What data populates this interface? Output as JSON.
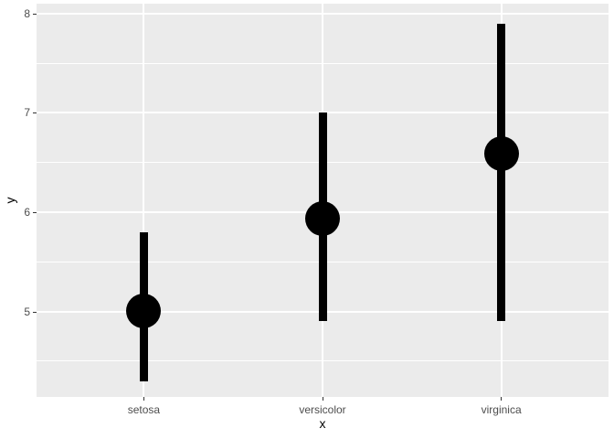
{
  "chart_data": {
    "type": "pointrange",
    "title": "",
    "xlabel": "x",
    "ylabel": "y",
    "categories": [
      "setosa",
      "versicolor",
      "virginica"
    ],
    "points": [
      {
        "category": "setosa",
        "y": 5.01,
        "ymin": 4.3,
        "ymax": 5.8
      },
      {
        "category": "versicolor",
        "y": 5.94,
        "ymin": 4.9,
        "ymax": 7.0
      },
      {
        "category": "virginica",
        "y": 6.59,
        "ymin": 4.9,
        "ymax": 7.9
      }
    ],
    "y_major_ticks": [
      5,
      6,
      7,
      8
    ],
    "y_minor_ticks": [
      4.5,
      5.5,
      6.5,
      7.5
    ],
    "ylim": [
      4.14,
      8.1
    ],
    "grid": true,
    "legend": "none",
    "theme": "ggplot-gray"
  },
  "colors": {
    "plot_background": "#FFFFFF",
    "panel_background": "#EBEBEB",
    "gridline": "#FFFFFF",
    "mark": "#000000",
    "axis_text": "#4D4D4D",
    "axis_title": "#000000",
    "tick_mark": "#333333"
  }
}
